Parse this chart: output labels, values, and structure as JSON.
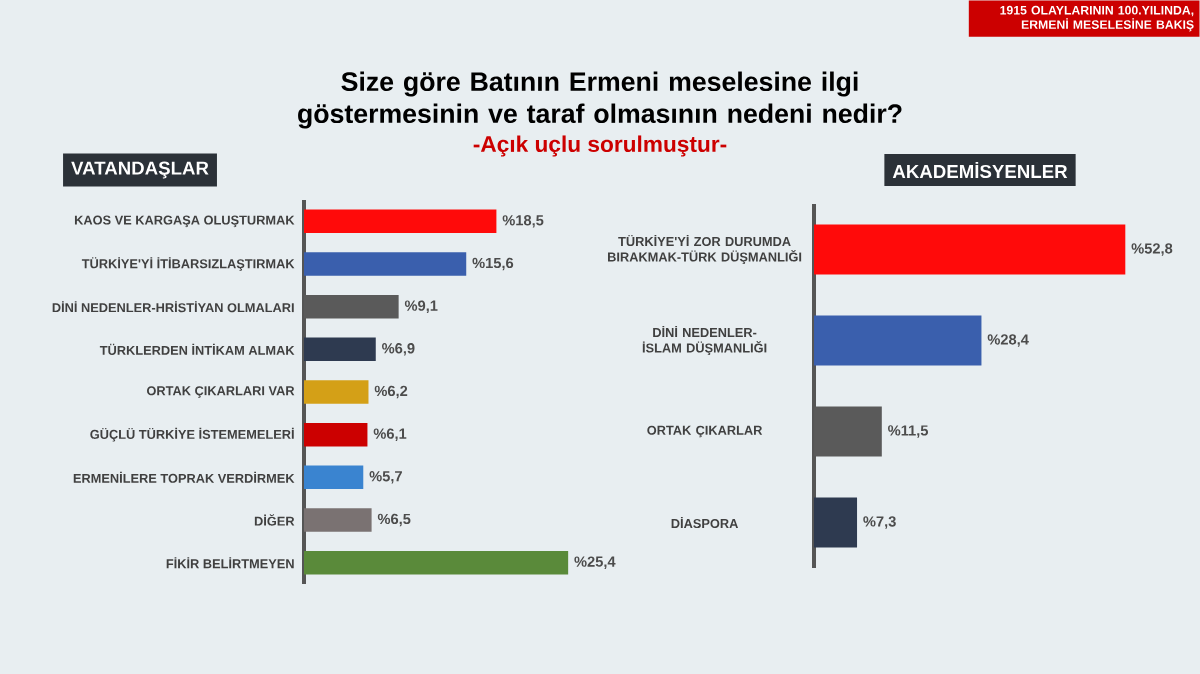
{
  "chart_data": [
    {
      "type": "other",
      "title": "Size göre Batının Ermeni meselesine ilgi göstermesinin ve taraf olmasının nedeni nedir?",
      "subtitle": "-Açık uçlu sorulmuştur-",
      "annotations": [
        "1915 OLAYLARININ 100.YILINDA, ERMENİ MESELESİNE BAKIŞ"
      ]
    },
    {
      "type": "bar",
      "orientation": "horizontal",
      "title": "VATANDAŞLAR",
      "categories": [
        "KAOS VE KARGAŞA OLUŞTURMAK",
        "TÜRKİYE'Yİ İTİBARSIZLAŞTIRMAK",
        "DİNİ NEDENLER-HRİSTİYAN OLMALARI",
        "TÜRKLERDEN İNTİKAM ALMAK",
        "ORTAK ÇIKARLARI VAR",
        "GÜÇLÜ TÜRKİYE İSTEMEMELERİ",
        "ERMENİLERE TOPRAK VERDİRMEK",
        "DİĞER",
        "FİKİR BELİRTMEYEN"
      ],
      "values": [
        18.5,
        15.6,
        9.1,
        6.9,
        6.2,
        6.1,
        5.7,
        6.5,
        25.4
      ],
      "value_labels": [
        "%18,5",
        "%15,6",
        "%9,1",
        "%6,9",
        "%6,2",
        "%6,1",
        "%5,7",
        "%6,5",
        "%25,4"
      ],
      "colors": [
        "#ff0a0a",
        "#3a5fad",
        "#5a5a5a",
        "#2e3a50",
        "#d4a017",
        "#cc0000",
        "#3a84d0",
        "#7a7272",
        "#5a8a3a"
      ],
      "tick_labels": "y"
    },
    {
      "type": "bar",
      "orientation": "horizontal",
      "title": "AKADEMİSYENLER",
      "categories": [
        "TÜRKİYE'Yİ ZOR DURUMDA BIRAKMAK-TÜRK DÜŞMANLIĞI",
        "DİNİ NEDENLER-İSLAM DÜŞMANLIĞI",
        "ORTAK ÇIKARLAR",
        "DİASPORA"
      ],
      "values": [
        52.8,
        28.4,
        11.5,
        7.3
      ],
      "value_labels": [
        "%52,8",
        "%28,4",
        "%11,5",
        "%7,3"
      ],
      "colors": [
        "#ff0a0a",
        "#3a5fad",
        "#5a5a5a",
        "#2e3a50"
      ],
      "tick_labels": "y"
    }
  ]
}
